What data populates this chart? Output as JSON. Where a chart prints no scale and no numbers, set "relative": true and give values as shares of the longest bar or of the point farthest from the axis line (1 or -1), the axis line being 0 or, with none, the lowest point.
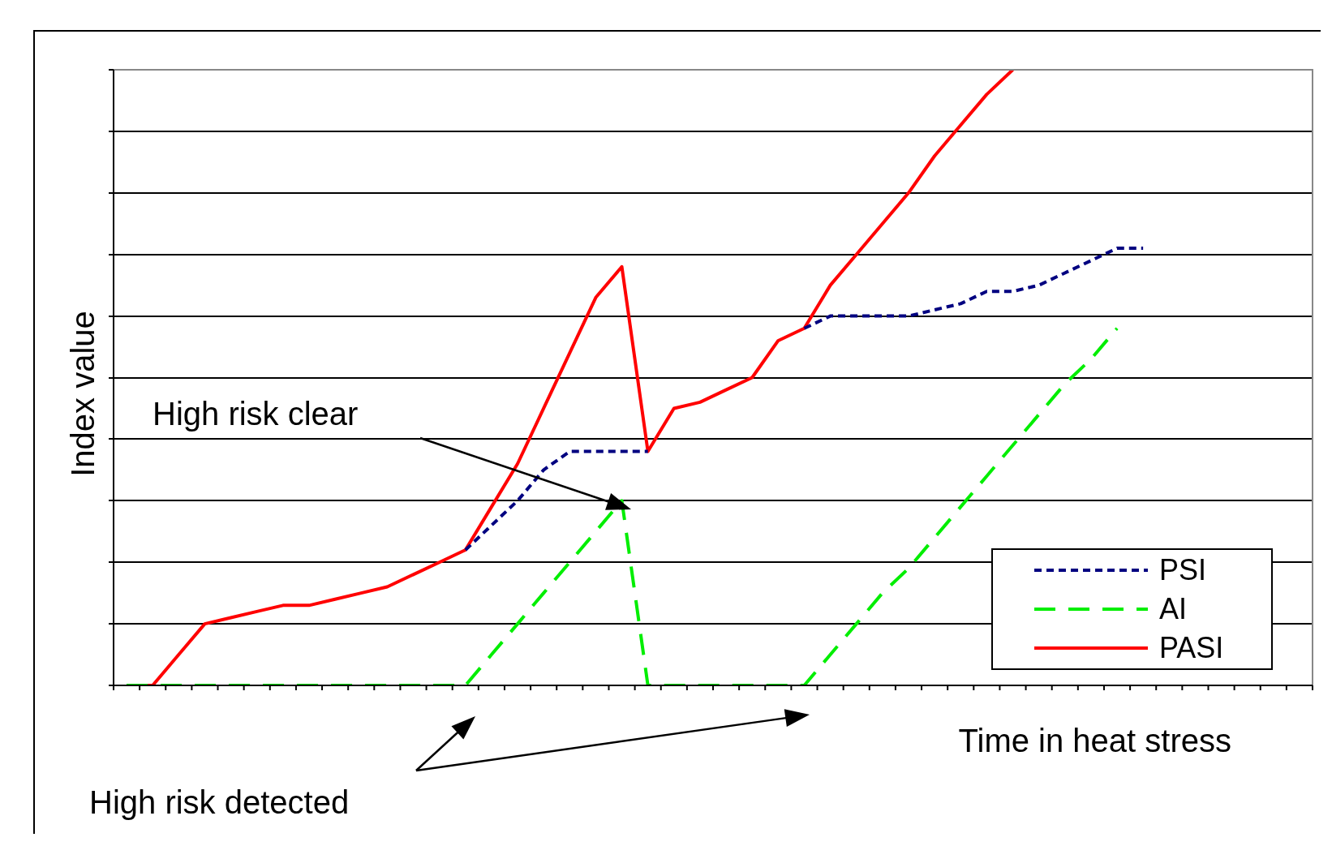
{
  "chart_data": {
    "type": "line",
    "relative": true,
    "xlabel": "Time in heat stress",
    "ylabel": "Index value",
    "categories": [
      null,
      null,
      null,
      null,
      null,
      null,
      null,
      null,
      null,
      null,
      null,
      null,
      null,
      null,
      null,
      null,
      null,
      null,
      null,
      null,
      null,
      null,
      null,
      null,
      null,
      null,
      null,
      null,
      null,
      null,
      null,
      null,
      null,
      null,
      null,
      null,
      null,
      null,
      null,
      null,
      null,
      null,
      null,
      null,
      null,
      null
    ],
    "series": [
      {
        "name": "PSI",
        "color": "#000080",
        "line_style": "dotted",
        "values": [
          null,
          null,
          null,
          null,
          null,
          null,
          null,
          null,
          null,
          null,
          null,
          null,
          null,
          0.22,
          0.26,
          0.3,
          0.35,
          0.38,
          0.38,
          0.38,
          0.38,
          null,
          null,
          null,
          null,
          null,
          0.58,
          0.6,
          0.6,
          0.6,
          0.6,
          0.61,
          0.62,
          0.64,
          0.64,
          0.65,
          0.67,
          0.69,
          0.71,
          0.71,
          null,
          null,
          null,
          null,
          null,
          null
        ]
      },
      {
        "name": "AI",
        "color": "#00ee00",
        "line_style": "dashed",
        "values": [
          0,
          0,
          0,
          0,
          0,
          0,
          0,
          0,
          0,
          0,
          0,
          0,
          0,
          0,
          0.05,
          0.1,
          0.15,
          0.2,
          0.25,
          0.3,
          0,
          0,
          0,
          0,
          0,
          0,
          0,
          0.05,
          0.1,
          0.15,
          0.19,
          0.24,
          0.29,
          0.34,
          0.39,
          0.44,
          0.49,
          0.53,
          0.58,
          null,
          null,
          null,
          null,
          null,
          null,
          null
        ]
      },
      {
        "name": "PASI",
        "color": "#ff0000",
        "line_style": "solid",
        "values": [
          0,
          0,
          0.05,
          0.1,
          0.11,
          0.12,
          0.13,
          0.13,
          0.14,
          0.15,
          0.16,
          0.18,
          0.2,
          0.22,
          0.29,
          0.36,
          0.45,
          0.54,
          0.63,
          0.68,
          0.38,
          0.45,
          0.46,
          0.48,
          0.5,
          0.56,
          0.58,
          0.65,
          0.7,
          0.75,
          0.8,
          0.86,
          0.91,
          0.96,
          1,
          null,
          null,
          null,
          null,
          null,
          null,
          null,
          null,
          null,
          null,
          null
        ]
      }
    ],
    "annotations": [
      "High risk clear",
      "High risk detected"
    ],
    "grid": "y",
    "legend": "bottom right",
    "marker": "none"
  }
}
